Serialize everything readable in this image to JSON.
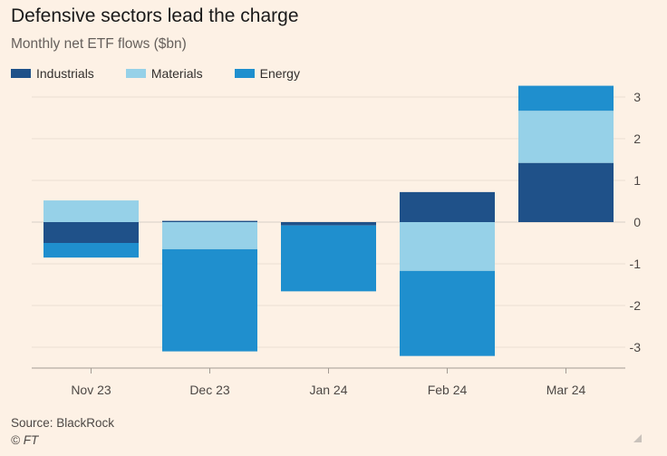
{
  "chart_data": {
    "type": "bar",
    "stacked": true,
    "title": "Defensive sectors lead the charge",
    "subtitle": "Monthly net ETF flows ($bn)",
    "categories": [
      "Nov 23",
      "Dec 23",
      "Jan 24",
      "Feb 24",
      "Mar 24"
    ],
    "series": [
      {
        "name": "Industrials",
        "color": "#1f5189",
        "values": [
          -0.5,
          0.03,
          -0.08,
          0.72,
          1.42
        ]
      },
      {
        "name": "Materials",
        "color": "#96d1e8",
        "values": [
          0.52,
          -0.65,
          0.0,
          -1.17,
          1.25
        ]
      },
      {
        "name": "Energy",
        "color": "#1f8fce",
        "values": [
          -0.35,
          -2.45,
          -1.58,
          -2.04,
          0.6
        ]
      }
    ],
    "ylim": [
      -3.5,
      3.2
    ],
    "yticks": [
      3,
      2,
      1,
      0,
      -1,
      -2,
      -3
    ],
    "ytick_labels": [
      "3",
      "2",
      "1",
      "0",
      "-1",
      "-2",
      "-3"
    ],
    "legend_position": "top-left",
    "grid": true
  },
  "source": "Source: BlackRock",
  "credit": "© FT"
}
